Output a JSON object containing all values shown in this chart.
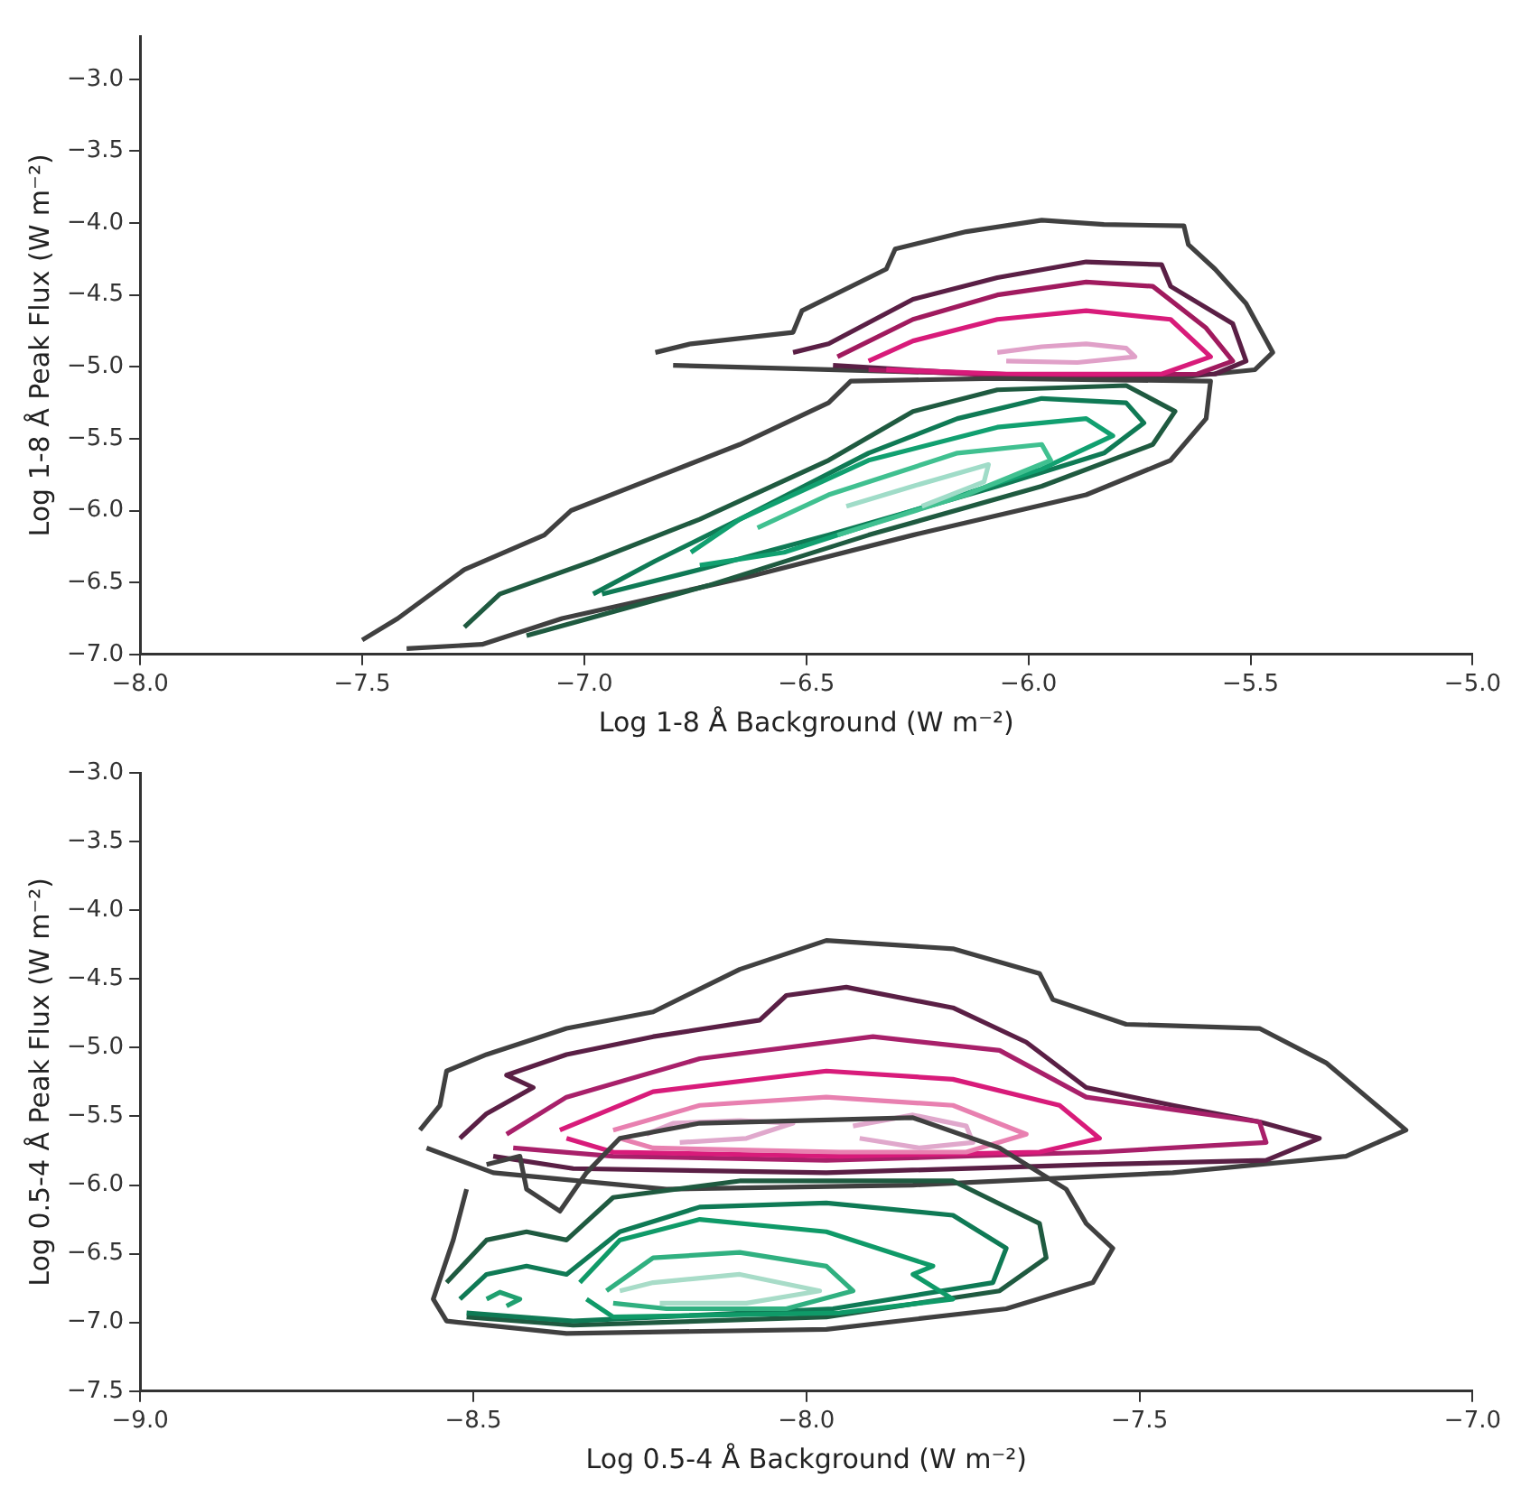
{
  "chart_data": [
    {
      "type": "line",
      "xlabel": "Log 1-8 Å Background (W m⁻²)",
      "ylabel": "Log 1-8 Å Peak Flux (W m⁻²)",
      "xlim": [
        -8,
        -5
      ],
      "ylim": [
        -7,
        -2.7
      ],
      "grid": false,
      "legend": false,
      "xticks": [
        {
          "value": -8,
          "label": "−8.0"
        },
        {
          "value": -7.5,
          "label": "−7.5"
        },
        {
          "value": -7,
          "label": "−7.0"
        },
        {
          "value": -6.5,
          "label": "−6.5"
        },
        {
          "value": -6,
          "label": "−6.0"
        },
        {
          "value": -5.5,
          "label": "−5.5"
        },
        {
          "value": -5,
          "label": "−5.0"
        }
      ],
      "yticks": [
        {
          "value": -7,
          "label": "−7.0"
        },
        {
          "value": -6.5,
          "label": "−6.5"
        },
        {
          "value": -6,
          "label": "−6.0"
        },
        {
          "value": -5.5,
          "label": "−5.5"
        },
        {
          "value": -5,
          "label": "−5.0"
        },
        {
          "value": -4.5,
          "label": "−4.5"
        },
        {
          "value": -4,
          "label": "−4.0"
        },
        {
          "value": -3.5,
          "label": "−3.5"
        },
        {
          "value": -3,
          "label": "−3.0"
        }
      ],
      "series": [
        {
          "color": "#404040",
          "x": [
            -6.84,
            -6.76,
            -6.53,
            -6.51,
            -6.32,
            -6.3,
            -6.14,
            -5.97,
            -5.83,
            -5.65,
            -5.64,
            -5.58,
            -5.51,
            -5.45,
            -5.49,
            -5.68,
            -6.07,
            -6.45,
            -6.8
          ],
          "values": [
            -4.9,
            -4.84,
            -4.76,
            -4.61,
            -4.32,
            -4.18,
            -4.06,
            -3.98,
            -4.01,
            -4.02,
            -4.15,
            -4.32,
            -4.56,
            -4.9,
            -5.02,
            -5.08,
            -5.05,
            -5.02,
            -4.99
          ]
        },
        {
          "color": "#5a1f45",
          "x": [
            -6.53,
            -6.45,
            -6.26,
            -6.07,
            -5.87,
            -5.7,
            -5.68,
            -5.54,
            -5.51,
            -5.58,
            -6.05,
            -6.44
          ],
          "values": [
            -4.9,
            -4.84,
            -4.53,
            -4.38,
            -4.27,
            -4.29,
            -4.44,
            -4.7,
            -4.96,
            -5.05,
            -5.06,
            -4.99
          ]
        },
        {
          "color": "#a01a5e",
          "x": [
            -6.43,
            -6.26,
            -6.07,
            -5.87,
            -5.72,
            -5.6,
            -5.54,
            -5.62,
            -6.05,
            -6.36
          ],
          "values": [
            -4.93,
            -4.67,
            -4.5,
            -4.41,
            -4.44,
            -4.73,
            -4.96,
            -5.05,
            -5.06,
            -5.02
          ]
        },
        {
          "color": "#d81b7a",
          "x": [
            -6.36,
            -6.26,
            -6.07,
            -5.87,
            -5.68,
            -5.59,
            -5.7,
            -6.05,
            -6.32
          ],
          "values": [
            -4.96,
            -4.82,
            -4.67,
            -4.61,
            -4.67,
            -4.93,
            -5.05,
            -5.05,
            -5.02
          ]
        },
        {
          "color": "#e0a0c8",
          "x": [
            -6.07,
            -5.97,
            -5.87,
            -5.78,
            -5.76,
            -5.89,
            -6.05
          ],
          "values": [
            -4.9,
            -4.86,
            -4.84,
            -4.87,
            -4.93,
            -4.97,
            -4.96
          ]
        },
        {
          "color": "#404040",
          "x": [
            -7.5,
            -7.42,
            -7.27,
            -7.09,
            -7.03,
            -6.84,
            -6.65,
            -6.45,
            -6.4,
            -6.07,
            -5.59,
            -5.6,
            -5.68,
            -5.87,
            -6.26,
            -6.63,
            -7.05,
            -7.23,
            -7.4
          ],
          "values": [
            -6.9,
            -6.75,
            -6.41,
            -6.17,
            -6.0,
            -5.77,
            -5.54,
            -5.25,
            -5.1,
            -5.08,
            -5.1,
            -5.36,
            -5.65,
            -5.89,
            -6.17,
            -6.46,
            -6.75,
            -6.93,
            -6.96
          ]
        },
        {
          "color": "#1f5a40",
          "x": [
            -7.27,
            -7.19,
            -6.98,
            -6.74,
            -6.45,
            -6.26,
            -6.07,
            -5.78,
            -5.67,
            -5.72,
            -5.97,
            -6.36,
            -6.72,
            -7.13
          ],
          "values": [
            -6.81,
            -6.58,
            -6.35,
            -6.06,
            -5.65,
            -5.31,
            -5.16,
            -5.13,
            -5.31,
            -5.54,
            -5.83,
            -6.17,
            -6.52,
            -6.87
          ]
        },
        {
          "color": "#0f7a55",
          "x": [
            -6.98,
            -6.84,
            -6.65,
            -6.36,
            -6.16,
            -5.97,
            -5.78,
            -5.74,
            -5.83,
            -6.07,
            -6.45,
            -6.74,
            -6.96
          ],
          "values": [
            -6.58,
            -6.35,
            -6.06,
            -5.6,
            -5.36,
            -5.22,
            -5.25,
            -5.39,
            -5.6,
            -5.83,
            -6.17,
            -6.41,
            -6.58
          ]
        },
        {
          "color": "#11a070",
          "x": [
            -6.76,
            -6.65,
            -6.36,
            -6.07,
            -5.87,
            -5.81,
            -5.97,
            -6.26,
            -6.55,
            -6.74
          ],
          "values": [
            -6.29,
            -6.06,
            -5.65,
            -5.42,
            -5.36,
            -5.48,
            -5.71,
            -6.0,
            -6.29,
            -6.38
          ]
        },
        {
          "color": "#40c090",
          "x": [
            -6.61,
            -6.45,
            -6.16,
            -5.97,
            -5.95,
            -6.14,
            -6.43
          ],
          "values": [
            -6.12,
            -5.89,
            -5.6,
            -5.54,
            -5.65,
            -5.89,
            -6.17
          ]
        },
        {
          "color": "#a0dcc8",
          "x": [
            -6.41,
            -6.26,
            -6.09,
            -6.1,
            -6.24
          ],
          "values": [
            -5.97,
            -5.83,
            -5.68,
            -5.8,
            -5.97
          ]
        }
      ]
    },
    {
      "type": "line",
      "xlabel": "Log 0.5-4 Å Background (W m⁻²)",
      "ylabel": "Log 0.5-4 Å Peak Flux (W m⁻²)",
      "xlim": [
        -9,
        -7
      ],
      "ylim": [
        -7.5,
        -3
      ],
      "grid": false,
      "legend": false,
      "xticks": [
        {
          "value": -9,
          "label": "−9.0"
        },
        {
          "value": -8.5,
          "label": "−8.5"
        },
        {
          "value": -8,
          "label": "−8.0"
        },
        {
          "value": -7.5,
          "label": "−7.5"
        },
        {
          "value": -7,
          "label": "−7.0"
        }
      ],
      "yticks": [
        {
          "value": -7.5,
          "label": "−7.5"
        },
        {
          "value": -7,
          "label": "−7.0"
        },
        {
          "value": -6.5,
          "label": "−6.5"
        },
        {
          "value": -6,
          "label": "−6.0"
        },
        {
          "value": -5.5,
          "label": "−5.5"
        },
        {
          "value": -5,
          "label": "−5.0"
        },
        {
          "value": -4.5,
          "label": "−4.5"
        },
        {
          "value": -4,
          "label": "−4.0"
        },
        {
          "value": -3.5,
          "label": "−3.5"
        },
        {
          "value": -3,
          "label": "−3.0"
        }
      ],
      "series": [
        {
          "color": "#404040",
          "x": [
            -8.58,
            -8.55,
            -8.54,
            -8.48,
            -8.36,
            -8.23,
            -8.1,
            -7.97,
            -7.78,
            -7.65,
            -7.63,
            -7.52,
            -7.32,
            -7.22,
            -7.1,
            -7.19,
            -7.45,
            -7.84,
            -8.21,
            -8.47,
            -8.57
          ],
          "values": [
            -5.6,
            -5.42,
            -5.17,
            -5.05,
            -4.86,
            -4.74,
            -4.43,
            -4.22,
            -4.28,
            -4.46,
            -4.65,
            -4.83,
            -4.86,
            -5.11,
            -5.6,
            -5.79,
            -5.91,
            -6.0,
            -6.03,
            -5.91,
            -5.73
          ]
        },
        {
          "color": "#5a1f45",
          "x": [
            -8.52,
            -8.48,
            -8.41,
            -8.45,
            -8.36,
            -8.23,
            -8.07,
            -8.03,
            -7.94,
            -7.78,
            -7.67,
            -7.58,
            -7.45,
            -7.32,
            -7.23,
            -7.31,
            -7.56,
            -7.97,
            -8.35,
            -8.47
          ],
          "values": [
            -5.66,
            -5.48,
            -5.29,
            -5.2,
            -5.05,
            -4.92,
            -4.8,
            -4.62,
            -4.56,
            -4.71,
            -4.96,
            -5.29,
            -5.42,
            -5.54,
            -5.66,
            -5.82,
            -5.85,
            -5.91,
            -5.88,
            -5.79
          ]
        },
        {
          "color": "#a8206a",
          "x": [
            -8.45,
            -8.36,
            -8.16,
            -7.9,
            -7.71,
            -7.58,
            -7.32,
            -7.31,
            -7.56,
            -7.97,
            -8.29,
            -8.44
          ],
          "values": [
            -5.63,
            -5.36,
            -5.08,
            -4.92,
            -5.02,
            -5.36,
            -5.54,
            -5.69,
            -5.76,
            -5.82,
            -5.79,
            -5.73
          ]
        },
        {
          "color": "#d81b7a",
          "x": [
            -8.37,
            -8.23,
            -7.97,
            -7.78,
            -7.62,
            -7.56,
            -7.65,
            -7.95,
            -8.29,
            -8.36
          ],
          "values": [
            -5.6,
            -5.32,
            -5.17,
            -5.23,
            -5.42,
            -5.66,
            -5.76,
            -5.79,
            -5.76,
            -5.66
          ]
        },
        {
          "color": "#e880b0",
          "x": [
            -8.29,
            -8.16,
            -7.97,
            -7.78,
            -7.67,
            -7.76,
            -7.95,
            -8.23,
            -8.28
          ],
          "values": [
            -5.6,
            -5.42,
            -5.36,
            -5.42,
            -5.63,
            -5.76,
            -5.76,
            -5.73,
            -5.66
          ]
        },
        {
          "color": "#e0a8cc",
          "x": [
            -8.24,
            -8.2,
            -8.1,
            -8.02,
            -8.09,
            -8.19
          ],
          "values": [
            -5.63,
            -5.55,
            -5.53,
            -5.55,
            -5.66,
            -5.69
          ]
        },
        {
          "color": "#e0a8cc",
          "x": [
            -7.93,
            -7.84,
            -7.76,
            -7.75,
            -7.83,
            -7.92
          ],
          "values": [
            -5.57,
            -5.49,
            -5.57,
            -5.69,
            -5.73,
            -5.66
          ]
        },
        {
          "color": "#404040",
          "x": [
            -8.48,
            -8.43,
            -8.42,
            -8.37,
            -8.33,
            -8.28,
            -8.16,
            -7.84,
            -7.71,
            -7.61,
            -7.58,
            -7.54,
            -7.57,
            -7.7,
            -7.97,
            -8.36,
            -8.54,
            -8.56,
            -8.53,
            -8.51
          ],
          "values": [
            -5.85,
            -5.79,
            -6.03,
            -6.19,
            -5.91,
            -5.66,
            -5.55,
            -5.51,
            -5.73,
            -6.03,
            -6.28,
            -6.46,
            -6.71,
            -6.9,
            -7.05,
            -7.08,
            -6.99,
            -6.83,
            -6.4,
            -6.03
          ]
        },
        {
          "color": "#1f5a40",
          "x": [
            -8.54,
            -8.48,
            -8.42,
            -8.36,
            -8.29,
            -8.1,
            -7.78,
            -7.65,
            -7.64,
            -7.71,
            -7.97,
            -8.35,
            -8.51
          ],
          "values": [
            -6.71,
            -6.4,
            -6.34,
            -6.4,
            -6.09,
            -5.97,
            -5.97,
            -6.28,
            -6.53,
            -6.77,
            -6.96,
            -7.02,
            -6.96
          ]
        },
        {
          "color": "#0f7a55",
          "x": [
            -8.52,
            -8.48,
            -8.42,
            -8.36,
            -8.28,
            -8.16,
            -7.97,
            -7.78,
            -7.7,
            -7.72,
            -7.96,
            -8.35,
            -8.51
          ],
          "values": [
            -6.83,
            -6.65,
            -6.59,
            -6.65,
            -6.34,
            -6.16,
            -6.13,
            -6.22,
            -6.46,
            -6.71,
            -6.9,
            -6.99,
            -6.93
          ]
        },
        {
          "color": "#0f9a68",
          "x": [
            -8.34,
            -8.28,
            -8.16,
            -7.97,
            -7.81,
            -7.84,
            -7.78,
            -7.95,
            -8.29,
            -8.33
          ],
          "values": [
            -6.71,
            -6.4,
            -6.25,
            -6.34,
            -6.59,
            -6.65,
            -6.83,
            -6.93,
            -6.96,
            -6.83
          ]
        },
        {
          "color": "#30b080",
          "x": [
            -8.3,
            -8.23,
            -8.1,
            -7.97,
            -7.93,
            -8.03,
            -8.21,
            -8.29
          ],
          "values": [
            -6.77,
            -6.53,
            -6.49,
            -6.59,
            -6.77,
            -6.9,
            -6.9,
            -6.86
          ]
        },
        {
          "color": "#a8dcc8",
          "x": [
            -8.28,
            -8.23,
            -8.1,
            -7.98,
            -8.09,
            -8.22
          ],
          "values": [
            -6.77,
            -6.71,
            -6.65,
            -6.77,
            -6.86,
            -6.86
          ]
        },
        {
          "color": "#20a070",
          "x": [
            -8.48,
            -8.46,
            -8.43,
            -8.45
          ],
          "values": [
            -6.83,
            -6.78,
            -6.83,
            -6.88
          ]
        }
      ]
    }
  ]
}
